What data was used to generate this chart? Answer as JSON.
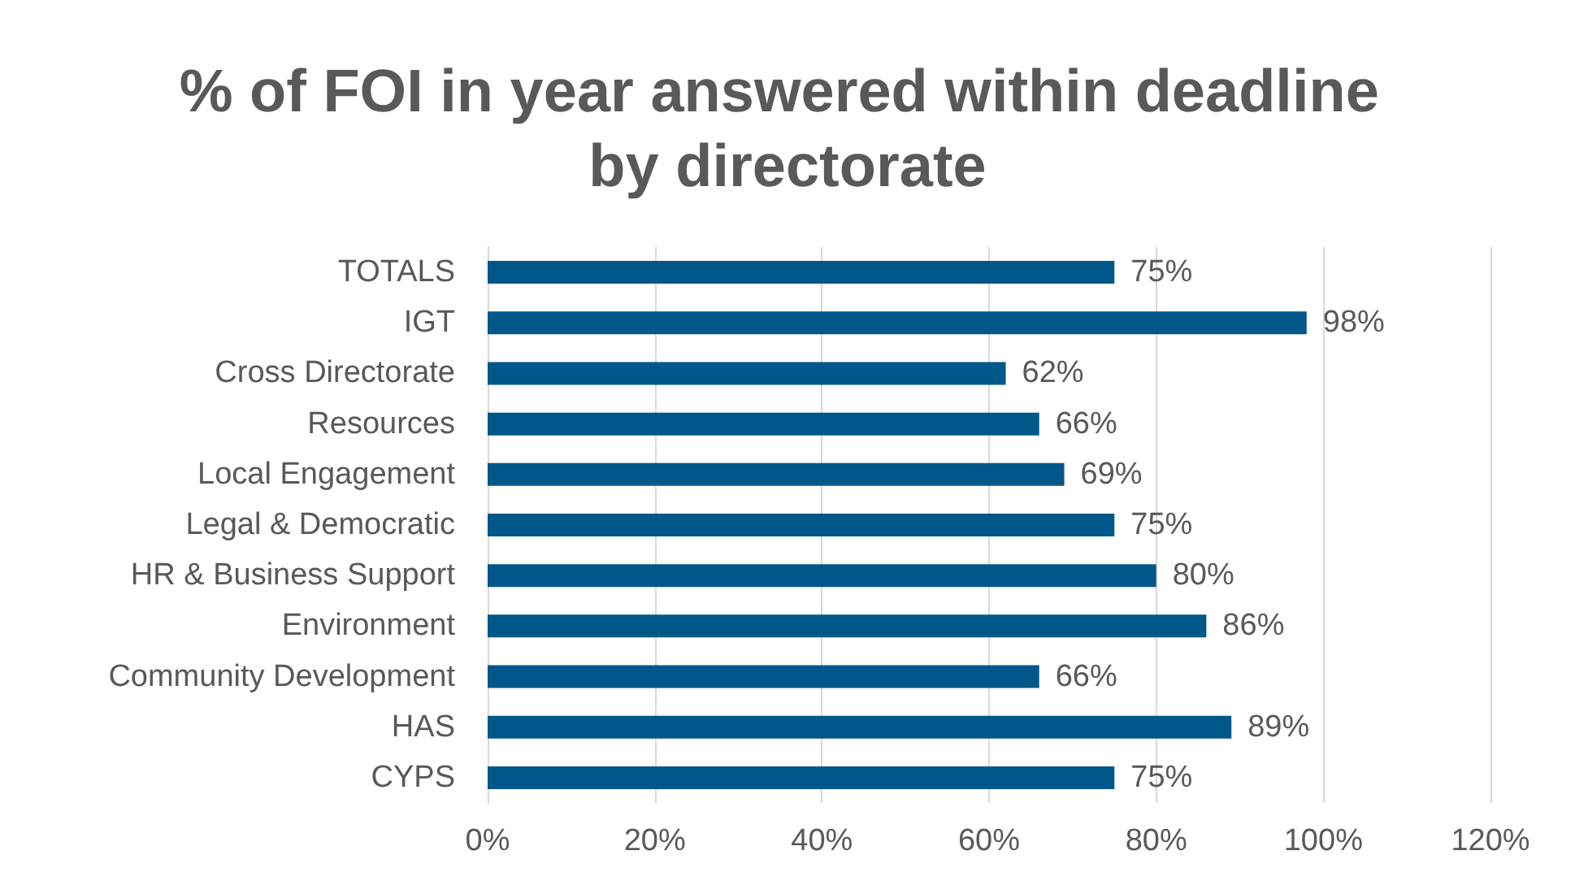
{
  "chart_data": {
    "type": "bar",
    "orientation": "horizontal",
    "title": "% of FOI in year answered within deadline by directorate",
    "categories": [
      "TOTALS",
      "IGT",
      "Cross Directorate",
      "Resources",
      "Local Engagement",
      "Legal & Democratic",
      "HR & Business Support",
      "Environment",
      "Community Development",
      "HAS",
      "CYPS"
    ],
    "values": [
      75,
      98,
      62,
      66,
      69,
      75,
      80,
      86,
      66,
      89,
      75
    ],
    "value_labels": [
      "75%",
      "98%",
      "62%",
      "66%",
      "69%",
      "75%",
      "80%",
      "86%",
      "66%",
      "89%",
      "75%"
    ],
    "color": "#00578a",
    "xlim": [
      0,
      120
    ],
    "xticks": [
      {
        "value": 0,
        "label": "0%"
      },
      {
        "value": 20,
        "label": "20%"
      },
      {
        "value": 40,
        "label": "40%"
      },
      {
        "value": 60,
        "label": "60%"
      },
      {
        "value": 80,
        "label": "80%"
      },
      {
        "value": 100,
        "label": "100%"
      },
      {
        "value": 120,
        "label": "120%"
      }
    ],
    "grid": "x"
  }
}
